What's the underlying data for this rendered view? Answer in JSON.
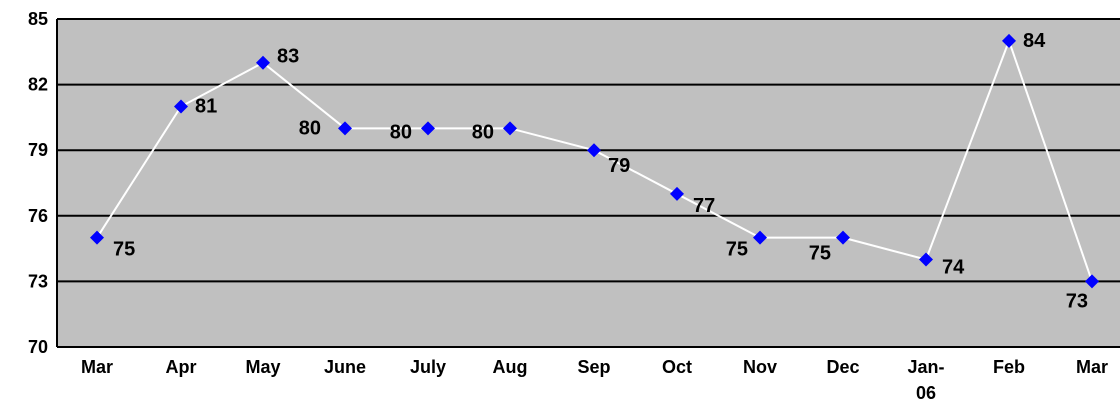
{
  "chart_data": {
    "type": "line",
    "categories": [
      "Mar",
      "Apr",
      "May",
      "June",
      "July",
      "Aug",
      "Sep",
      "Oct",
      "Nov",
      "Dec",
      "Jan-06",
      "Feb",
      "Mar"
    ],
    "series": [
      {
        "values": [
          75,
          81,
          83,
          80,
          80,
          80,
          79,
          77,
          75,
          75,
          74,
          84,
          73
        ],
        "data_labels": [
          "75",
          "81",
          "83",
          "80",
          "80",
          "80",
          "79",
          "77",
          "75",
          "75",
          "74",
          "84",
          "73"
        ]
      }
    ],
    "title": "",
    "xlabel": "",
    "ylabel": "",
    "ylim": [
      70,
      85
    ],
    "yticks": [
      70,
      73,
      76,
      79,
      82,
      85
    ],
    "ytick_labels": [
      "70",
      "73",
      "76",
      "79",
      "82",
      "85"
    ],
    "grid": "horizontal",
    "legend": "none",
    "colors": {
      "plot_background": "#c0c0c0",
      "gridline": "#000000",
      "line": "#ffffff",
      "marker": "#0000ff"
    }
  }
}
